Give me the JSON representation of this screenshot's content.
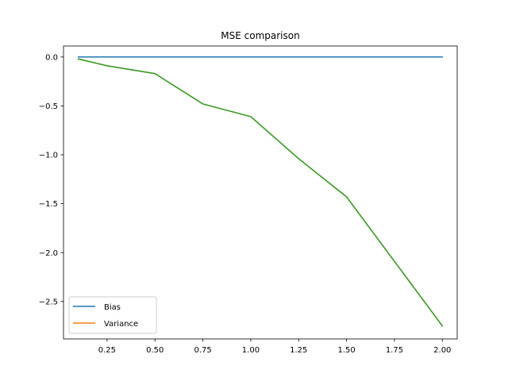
{
  "chart_data": {
    "type": "line",
    "title": "MSE comparison",
    "xlabel": "",
    "ylabel": "",
    "xlim": [
      0.0225,
      2.0775
    ],
    "ylim": [
      -2.883,
      0.112
    ],
    "xticks": [
      0.25,
      0.5,
      0.75,
      1.0,
      1.25,
      1.5,
      1.75,
      2.0
    ],
    "xtick_labels": [
      "0.25",
      "0.50",
      "0.75",
      "1.00",
      "1.25",
      "1.50",
      "1.75",
      "2.00"
    ],
    "yticks": [
      0.0,
      -0.5,
      -1.0,
      -1.5,
      -2.0,
      -2.5
    ],
    "ytick_labels": [
      "0.0",
      "−0.5",
      "−1.0",
      "−1.5",
      "−2.0",
      "−2.5"
    ],
    "x": [
      0.1,
      0.25,
      0.5,
      0.75,
      1.0,
      1.25,
      1.5,
      1.75,
      2.0
    ],
    "series": [
      {
        "name": "Bias",
        "color": "#1f77b4",
        "values": [
          0,
          0,
          0,
          0,
          0,
          0,
          0,
          0,
          0
        ]
      },
      {
        "name": "Variance",
        "color": "#ff7f0e",
        "values": [
          -0.02,
          -0.09,
          -0.17,
          -0.48,
          -0.61,
          -1.04,
          -1.43,
          -2.09,
          -2.75
        ]
      },
      {
        "name": "",
        "color": "#2ca02c",
        "values": [
          -0.02,
          -0.09,
          -0.17,
          -0.48,
          -0.61,
          -1.04,
          -1.43,
          -2.09,
          -2.75
        ]
      }
    ],
    "legend": {
      "placement": "lower-left",
      "entries": [
        "Bias",
        "Variance"
      ]
    },
    "grid": false
  }
}
